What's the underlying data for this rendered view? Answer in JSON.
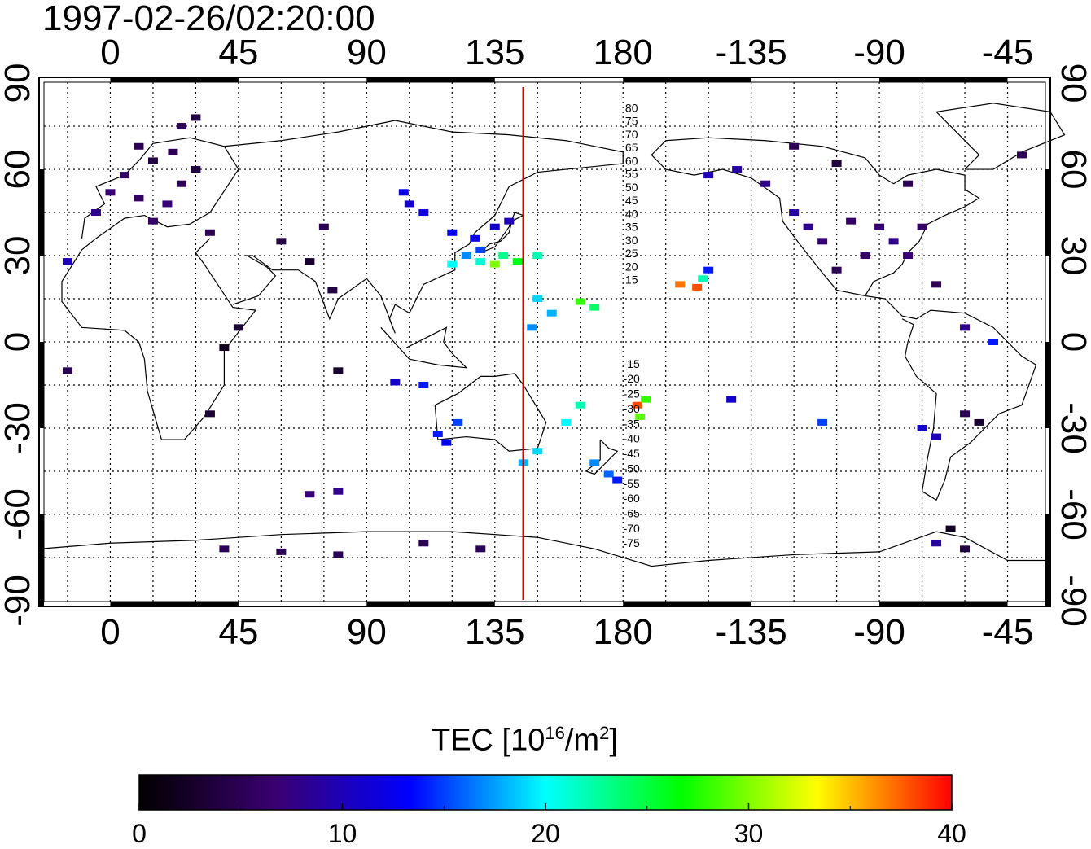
{
  "title": "1997-02-26/02:20:00",
  "map": {
    "lon_ticks": [
      "0",
      "45",
      "90",
      "135",
      "180",
      "-135",
      "-90",
      "-45"
    ],
    "lon_tick_values": [
      0,
      45,
      90,
      135,
      180,
      225,
      270,
      315
    ],
    "lat_ticks": [
      "90",
      "60",
      "30",
      "0",
      "-30",
      "-60",
      "-90"
    ],
    "lat_tick_values": [
      90,
      60,
      30,
      0,
      -30,
      -60,
      -90
    ],
    "lon_range": [
      -25,
      330
    ],
    "lat_range": [
      -92,
      92
    ],
    "marker_line_lon": 145,
    "marker_line_color": "#e00000",
    "north_contour_labels": [
      "80",
      "75",
      "70",
      "65",
      "60",
      "55",
      "50",
      "45",
      "40",
      "35",
      "30",
      "25",
      "20",
      "15"
    ],
    "south_contour_labels": [
      "-15",
      "-20",
      "-25",
      "-30",
      "-35",
      "-40",
      "-45",
      "-50",
      "-55",
      "-60",
      "-65",
      "-70",
      "-75"
    ],
    "grid": "dotted"
  },
  "colorbar": {
    "label": "TEC  [10",
    "label_exp": "16",
    "label_unit": "/m",
    "label_unit_exp": "2",
    "label_close": "]",
    "ticks": [
      "0",
      "10",
      "20",
      "30",
      "40"
    ],
    "range": [
      0,
      40
    ],
    "colors": [
      "#000000",
      "#3a0070",
      "#0000ff",
      "#00ffff",
      "#00ff00",
      "#ffff00",
      "#ff0000"
    ]
  },
  "chart_data": {
    "type": "scatter",
    "title": "1997-02-26/02:20:00",
    "xlabel": "",
    "ylabel": "",
    "xlim": [
      -25,
      330
    ],
    "ylim": [
      -90,
      90
    ],
    "color_scale": "TEC [10^16/m^2]",
    "color_range": [
      0,
      40
    ],
    "points": [
      {
        "lon": 10,
        "lat": 68,
        "tec": 5
      },
      {
        "lon": 15,
        "lat": 63,
        "tec": 4
      },
      {
        "lon": 22,
        "lat": 66,
        "tec": 5
      },
      {
        "lon": 5,
        "lat": 58,
        "tec": 6
      },
      {
        "lon": 0,
        "lat": 52,
        "tec": 7
      },
      {
        "lon": 10,
        "lat": 50,
        "tec": 6
      },
      {
        "lon": 20,
        "lat": 48,
        "tec": 7
      },
      {
        "lon": 25,
        "lat": 55,
        "tec": 5
      },
      {
        "lon": 30,
        "lat": 60,
        "tec": 4
      },
      {
        "lon": -5,
        "lat": 45,
        "tec": 8
      },
      {
        "lon": 15,
        "lat": 42,
        "tec": 6
      },
      {
        "lon": 35,
        "lat": 38,
        "tec": 5
      },
      {
        "lon": 30,
        "lat": 78,
        "tec": 4
      },
      {
        "lon": 25,
        "lat": 75,
        "tec": 5
      },
      {
        "lon": -15,
        "lat": 28,
        "tec": 10
      },
      {
        "lon": 60,
        "lat": 35,
        "tec": 4
      },
      {
        "lon": 75,
        "lat": 40,
        "tec": 5
      },
      {
        "lon": 70,
        "lat": 28,
        "tec": 3
      },
      {
        "lon": 78,
        "lat": 18,
        "tec": 4
      },
      {
        "lon": 45,
        "lat": 5,
        "tec": 3
      },
      {
        "lon": 40,
        "lat": -2,
        "tec": 2
      },
      {
        "lon": 35,
        "lat": -25,
        "tec": 3
      },
      {
        "lon": -15,
        "lat": -10,
        "tec": 5
      },
      {
        "lon": 80,
        "lat": -10,
        "tec": 3
      },
      {
        "lon": 105,
        "lat": 48,
        "tec": 11
      },
      {
        "lon": 110,
        "lat": 45,
        "tec": 12
      },
      {
        "lon": 120,
        "lat": 38,
        "tec": 13
      },
      {
        "lon": 128,
        "lat": 36,
        "tec": 12
      },
      {
        "lon": 135,
        "lat": 40,
        "tec": 11
      },
      {
        "lon": 140,
        "lat": 42,
        "tec": 10
      },
      {
        "lon": 130,
        "lat": 32,
        "tec": 15
      },
      {
        "lon": 125,
        "lat": 30,
        "tec": 17
      },
      {
        "lon": 120,
        "lat": 27,
        "tec": 20
      },
      {
        "lon": 130,
        "lat": 28,
        "tec": 21
      },
      {
        "lon": 138,
        "lat": 30,
        "tec": 23
      },
      {
        "lon": 143,
        "lat": 28,
        "tec": 26
      },
      {
        "lon": 135,
        "lat": 27,
        "tec": 30
      },
      {
        "lon": 150,
        "lat": 30,
        "tec": 22
      },
      {
        "lon": 150,
        "lat": 15,
        "tec": 19
      },
      {
        "lon": 155,
        "lat": 10,
        "tec": 18
      },
      {
        "lon": 165,
        "lat": 14,
        "tec": 28
      },
      {
        "lon": 170,
        "lat": 12,
        "tec": 24
      },
      {
        "lon": 148,
        "lat": 5,
        "tec": 17
      },
      {
        "lon": 200,
        "lat": 20,
        "tec": 37
      },
      {
        "lon": 206,
        "lat": 19,
        "tec": 38
      },
      {
        "lon": 208,
        "lat": 22,
        "tec": 22
      },
      {
        "lon": 210,
        "lat": 25,
        "tec": 14
      },
      {
        "lon": 185,
        "lat": -22,
        "tec": 38
      },
      {
        "lon": 188,
        "lat": -20,
        "tec": 28
      },
      {
        "lon": 186,
        "lat": -26,
        "tec": 29
      },
      {
        "lon": 165,
        "lat": -22,
        "tec": 22
      },
      {
        "lon": 160,
        "lat": -28,
        "tec": 20
      },
      {
        "lon": 150,
        "lat": -38,
        "tec": 19
      },
      {
        "lon": 145,
        "lat": -42,
        "tec": 18
      },
      {
        "lon": 170,
        "lat": -42,
        "tec": 17
      },
      {
        "lon": 175,
        "lat": -46,
        "tec": 16
      },
      {
        "lon": 178,
        "lat": -48,
        "tec": 14
      },
      {
        "lon": 115,
        "lat": -32,
        "tec": 14
      },
      {
        "lon": 118,
        "lat": -35,
        "tec": 13
      },
      {
        "lon": 122,
        "lat": -28,
        "tec": 15
      },
      {
        "lon": 110,
        "lat": -15,
        "tec": 14
      },
      {
        "lon": 100,
        "lat": -14,
        "tec": 11
      },
      {
        "lon": 103,
        "lat": 52,
        "tec": 12
      },
      {
        "lon": 210,
        "lat": 58,
        "tec": 10
      },
      {
        "lon": 220,
        "lat": 60,
        "tec": 9
      },
      {
        "lon": 230,
        "lat": 55,
        "tec": 8
      },
      {
        "lon": 240,
        "lat": 45,
        "tec": 9
      },
      {
        "lon": 245,
        "lat": 40,
        "tec": 8
      },
      {
        "lon": 250,
        "lat": 35,
        "tec": 7
      },
      {
        "lon": 260,
        "lat": 42,
        "tec": 6
      },
      {
        "lon": 270,
        "lat": 40,
        "tec": 7
      },
      {
        "lon": 275,
        "lat": 35,
        "tec": 8
      },
      {
        "lon": 285,
        "lat": 40,
        "tec": 6
      },
      {
        "lon": 280,
        "lat": 30,
        "tec": 7
      },
      {
        "lon": 265,
        "lat": 30,
        "tec": 6
      },
      {
        "lon": 255,
        "lat": 25,
        "tec": 5
      },
      {
        "lon": 290,
        "lat": 20,
        "tec": 5
      },
      {
        "lon": 300,
        "lat": 5,
        "tec": 8
      },
      {
        "lon": 310,
        "lat": 0,
        "tec": 14
      },
      {
        "lon": 300,
        "lat": -25,
        "tec": 5
      },
      {
        "lon": 305,
        "lat": -28,
        "tec": 3
      },
      {
        "lon": 290,
        "lat": -33,
        "tec": 10
      },
      {
        "lon": 285,
        "lat": -30,
        "tec": 11
      },
      {
        "lon": 250,
        "lat": -28,
        "tec": 15
      },
      {
        "lon": 218,
        "lat": -20,
        "tec": 11
      },
      {
        "lon": 295,
        "lat": -65,
        "tec": 2
      },
      {
        "lon": 290,
        "lat": -70,
        "tec": 9
      },
      {
        "lon": 300,
        "lat": -72,
        "tec": 4
      },
      {
        "lon": 40,
        "lat": -72,
        "tec": 5
      },
      {
        "lon": 60,
        "lat": -73,
        "tec": 5
      },
      {
        "lon": 80,
        "lat": -74,
        "tec": 5
      },
      {
        "lon": 110,
        "lat": -70,
        "tec": 5
      },
      {
        "lon": 130,
        "lat": -72,
        "tec": 5
      },
      {
        "lon": 70,
        "lat": -53,
        "tec": 7
      },
      {
        "lon": 80,
        "lat": -52,
        "tec": 8
      },
      {
        "lon": 240,
        "lat": 68,
        "tec": 5
      },
      {
        "lon": 255,
        "lat": 62,
        "tec": 4
      },
      {
        "lon": 280,
        "lat": 55,
        "tec": 5
      },
      {
        "lon": 320,
        "lat": 65,
        "tec": 5
      }
    ]
  }
}
